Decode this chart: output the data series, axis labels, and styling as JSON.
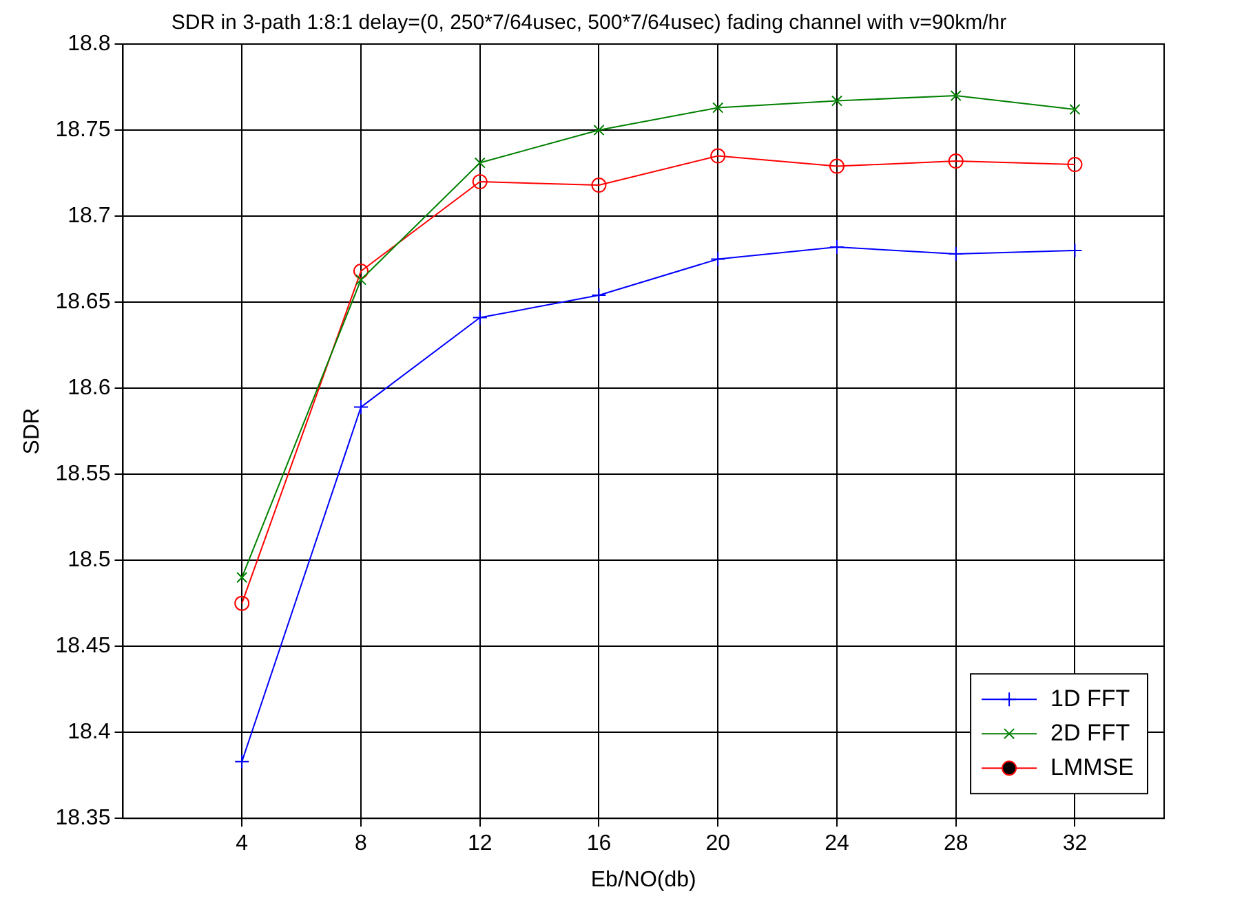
{
  "chart_data": {
    "type": "line",
    "title": "SDR in 3-path 1:8:1 delay=(0, 250*7/64usec, 500*7/64usec) fading channel with v=90km/hr",
    "xlabel": "Eb/NO(db)",
    "ylabel": "SDR",
    "x": [
      4,
      8,
      12,
      16,
      20,
      24,
      28,
      32
    ],
    "series": [
      {
        "name": "1D FFT",
        "color": "#0000ff",
        "marker": "cross",
        "values": [
          18.383,
          18.589,
          18.641,
          18.654,
          18.675,
          18.682,
          18.678,
          18.68
        ]
      },
      {
        "name": "2D FFT",
        "color": "#008000",
        "marker": "x",
        "values": [
          18.49,
          18.663,
          18.731,
          18.75,
          18.763,
          18.767,
          18.77,
          18.762
        ]
      },
      {
        "name": "LMMSE",
        "color": "#ff0000",
        "marker": "circle",
        "values": [
          18.475,
          18.668,
          18.72,
          18.718,
          18.735,
          18.729,
          18.732,
          18.73
        ]
      }
    ],
    "xlim": [
      0,
      35
    ],
    "xticks": [
      4,
      8,
      12,
      16,
      20,
      24,
      28,
      32
    ],
    "ylim": [
      18.35,
      18.8
    ],
    "yticks": [
      18.35,
      18.4,
      18.45,
      18.5,
      18.55,
      18.6,
      18.65,
      18.7,
      18.75,
      18.8
    ],
    "grid": true,
    "legend": "bottom right",
    "line_style": "solid"
  }
}
